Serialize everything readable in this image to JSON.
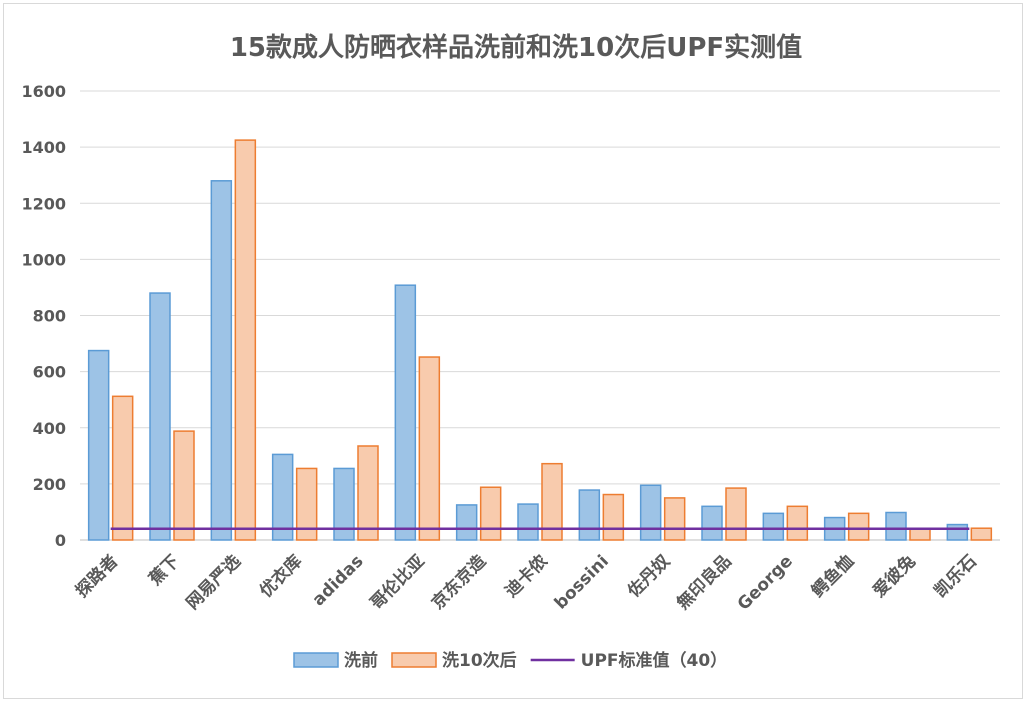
{
  "chart_data": {
    "type": "bar",
    "title": "15款成人防晒衣样品洗前和洗10次后UPF实测值",
    "xlabel": "",
    "ylabel": "",
    "ylim": [
      0,
      1600
    ],
    "yticks": [
      0,
      200,
      400,
      600,
      800,
      1000,
      1200,
      1400,
      1600
    ],
    "grid": true,
    "legend_position": "bottom",
    "categories": [
      "探路者",
      "蕉下",
      "网易严选",
      "优衣库",
      "adidas",
      "哥伦比亚",
      "京东京造",
      "迪卡侬",
      "bossini",
      "佐丹奴",
      "無印良品",
      "George",
      "鳄鱼恤",
      "爱彼兔",
      "凯乐石"
    ],
    "series": [
      {
        "name": "洗前",
        "type": "bar",
        "color": "#9DC3E6",
        "stroke": "#5B9BD5",
        "values": [
          675,
          880,
          1280,
          305,
          255,
          908,
          125,
          128,
          178,
          195,
          120,
          95,
          80,
          98,
          55
        ]
      },
      {
        "name": "洗10次后",
        "type": "bar",
        "color": "#F8CBAD",
        "stroke": "#ED7D31",
        "values": [
          512,
          388,
          1425,
          255,
          335,
          652,
          188,
          272,
          162,
          150,
          185,
          120,
          95,
          40,
          42
        ]
      },
      {
        "name": "UPF标准值（40）",
        "type": "line",
        "color": "#7030A0",
        "values": [
          40,
          40,
          40,
          40,
          40,
          40,
          40,
          40,
          40,
          40,
          40,
          40,
          40,
          40,
          40
        ]
      }
    ]
  }
}
